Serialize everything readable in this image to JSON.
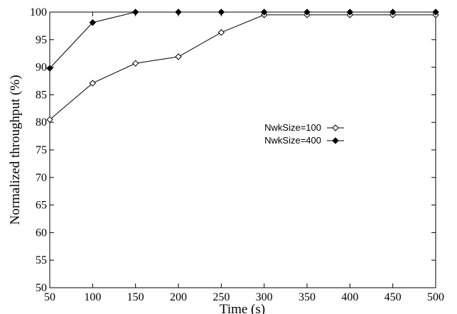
{
  "chart_data": {
    "type": "line",
    "title": "",
    "xlabel": "Time (s)",
    "ylabel": "Normalized throughput (%)",
    "x": [
      50,
      100,
      150,
      200,
      250,
      300,
      350,
      400,
      450,
      500
    ],
    "xticks": [
      "50",
      "100",
      "150",
      "200",
      "250",
      "300",
      "350",
      "400",
      "450",
      "500"
    ],
    "yticks": [
      "50",
      "55",
      "60",
      "65",
      "70",
      "75",
      "80",
      "85",
      "90",
      "95",
      "100"
    ],
    "xlim": [
      50,
      500
    ],
    "ylim": [
      50,
      100
    ],
    "grid": false,
    "legend_position": "right-center",
    "series": [
      {
        "name": "NwkSize=100",
        "marker": "open-diamond",
        "color": "#000000",
        "values": [
          80.5,
          87.1,
          90.7,
          91.9,
          96.3,
          99.5,
          99.5,
          99.5,
          99.5,
          99.5
        ]
      },
      {
        "name": "NwkSize=400",
        "marker": "filled-diamond",
        "color": "#000000",
        "values": [
          89.8,
          98.1,
          100,
          100,
          100,
          100,
          100,
          100,
          100,
          100
        ]
      }
    ]
  }
}
